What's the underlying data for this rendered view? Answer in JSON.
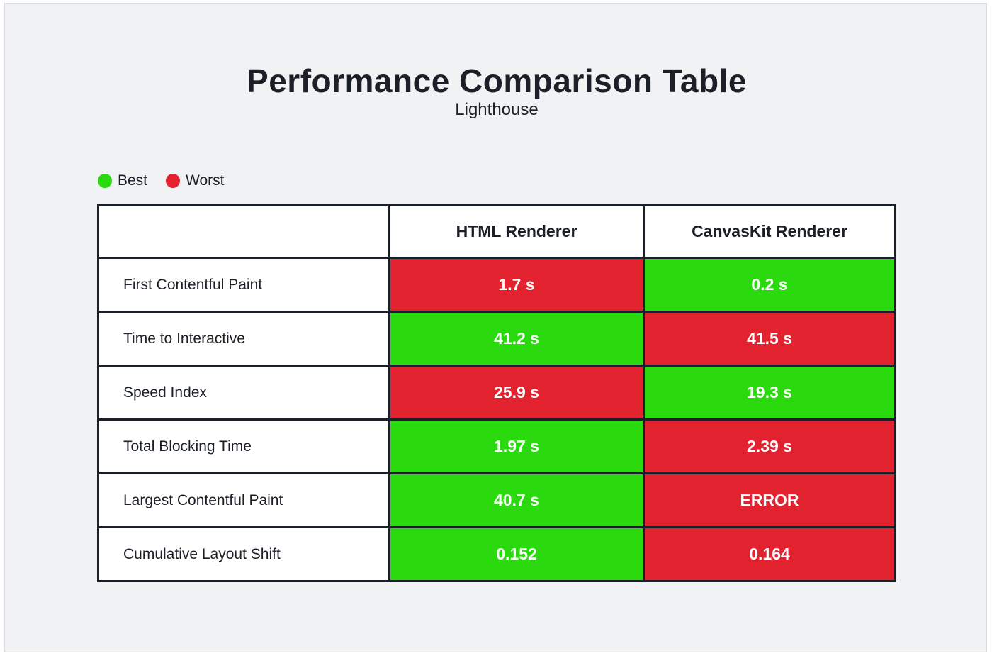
{
  "colors": {
    "best": "#2ad90e",
    "worst": "#e2222f"
  },
  "chart_data": {
    "type": "table",
    "title": "Performance Comparison Table",
    "subtitle": "Lighthouse",
    "legend": [
      {
        "label": "Best",
        "status": "best"
      },
      {
        "label": "Worst",
        "status": "worst"
      }
    ],
    "columns": [
      "",
      "HTML Renderer",
      "CanvasKit Renderer"
    ],
    "rows": [
      {
        "metric": "First Contentful Paint",
        "cells": [
          {
            "text": "1.7 s",
            "status": "worst"
          },
          {
            "text": "0.2 s",
            "status": "best"
          }
        ]
      },
      {
        "metric": "Time to Interactive",
        "cells": [
          {
            "text": "41.2 s",
            "status": "best"
          },
          {
            "text": "41.5 s",
            "status": "worst"
          }
        ]
      },
      {
        "metric": "Speed Index",
        "cells": [
          {
            "text": "25.9 s",
            "status": "worst"
          },
          {
            "text": "19.3 s",
            "status": "best"
          }
        ]
      },
      {
        "metric": "Total Blocking Time",
        "cells": [
          {
            "text": "1.97 s",
            "status": "best"
          },
          {
            "text": "2.39 s",
            "status": "worst"
          }
        ]
      },
      {
        "metric": "Largest Contentful Paint",
        "cells": [
          {
            "text": "40.7 s",
            "status": "best"
          },
          {
            "text": "ERROR",
            "status": "worst"
          }
        ]
      },
      {
        "metric": "Cumulative Layout Shift",
        "cells": [
          {
            "text": "0.152",
            "status": "best"
          },
          {
            "text": "0.164",
            "status": "worst"
          }
        ]
      }
    ]
  }
}
